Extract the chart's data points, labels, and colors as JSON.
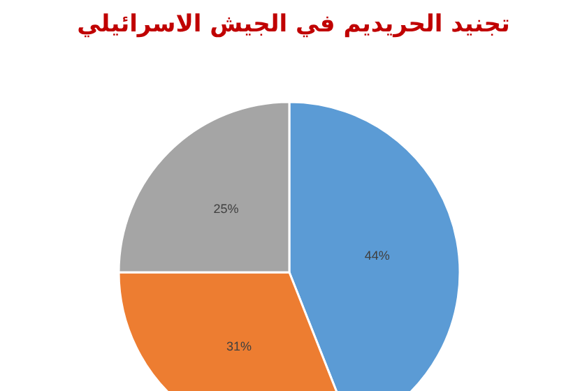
{
  "chart_data": {
    "type": "pie",
    "title": "تجنيد الحريديم في الجيش الاسرائيلي",
    "categories": [
      null,
      null,
      null
    ],
    "values": [
      44,
      31,
      25
    ],
    "colors": [
      "#5b9bd5",
      "#ed7d31",
      "#a5a5a5"
    ],
    "value_labels": [
      "44%",
      "31%",
      "25%"
    ]
  }
}
